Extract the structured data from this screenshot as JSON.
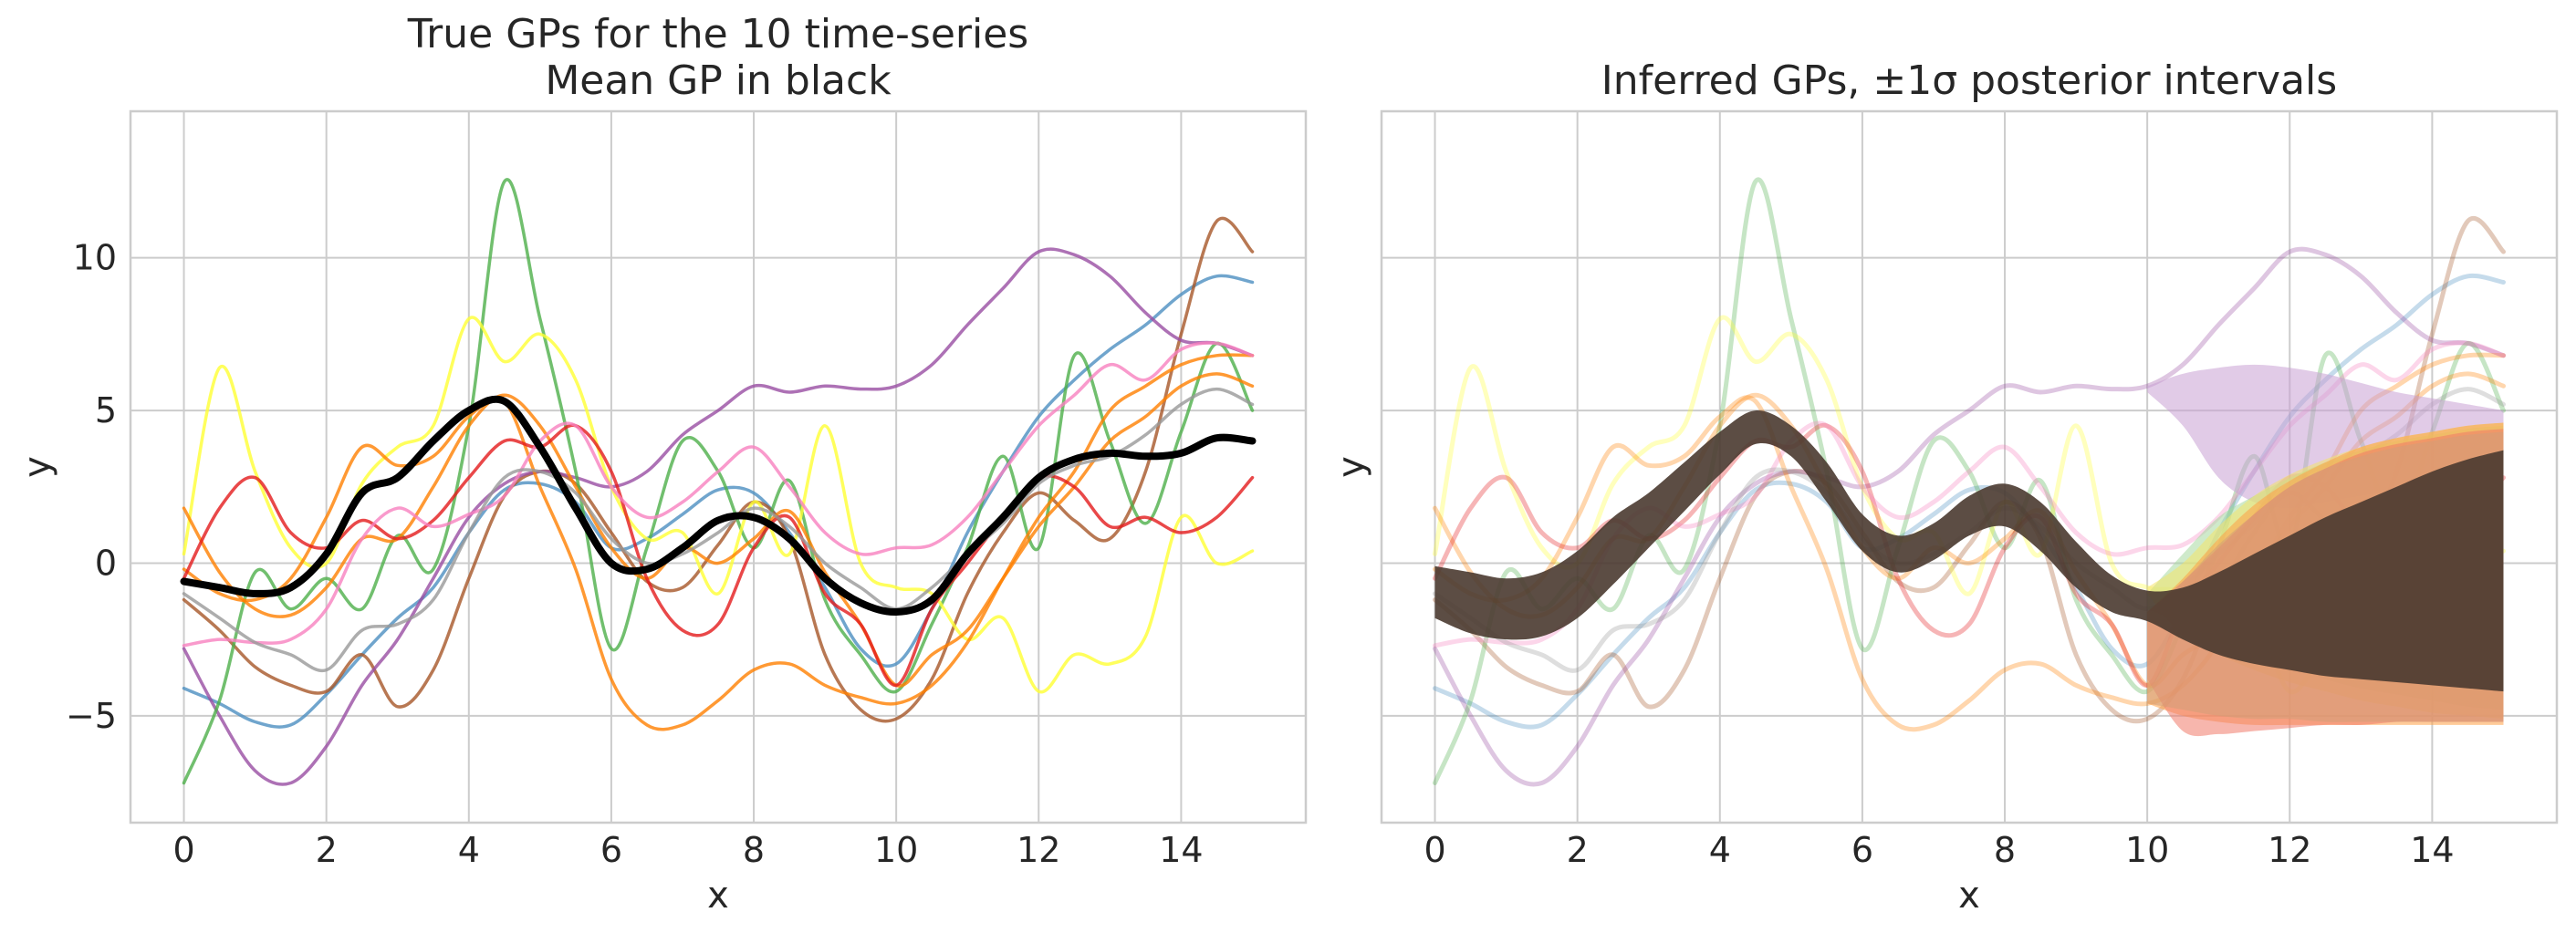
{
  "chart_data": [
    {
      "type": "line",
      "title": "True GPs for the 10 time-series",
      "subtitle": "Mean GP in black",
      "xlabel": "x",
      "ylabel": "y",
      "xlim": [
        -0.75,
        15.75
      ],
      "ylim": [
        -8.5,
        14.8
      ],
      "xticks": [
        "0",
        "2",
        "4",
        "6",
        "8",
        "10",
        "12",
        "14"
      ],
      "yticks": [
        "−5",
        "0",
        "5",
        "10"
      ],
      "grid": true,
      "x": [
        0,
        0.5,
        1,
        1.5,
        2,
        2.5,
        3,
        3.5,
        4,
        4.5,
        5,
        5.5,
        6,
        6.5,
        7,
        7.5,
        8,
        8.5,
        9,
        9.5,
        10,
        10.5,
        11,
        11.5,
        12,
        12.5,
        13,
        13.5,
        14,
        14.5,
        15
      ],
      "series": [
        {
          "name": "series-1",
          "color": "#4c8fc0",
          "values": [
            -4.1,
            -4.6,
            -5.2,
            -5.3,
            -4.3,
            -3.0,
            -1.8,
            -0.8,
            1.0,
            2.4,
            2.6,
            2.0,
            0.5,
            0.8,
            1.6,
            2.4,
            2.3,
            1.0,
            -0.8,
            -2.8,
            -3.3,
            -1.5,
            1.0,
            3.0,
            4.8,
            6.0,
            7.0,
            7.8,
            8.8,
            9.4,
            9.2
          ]
        },
        {
          "name": "series-2",
          "color": "#a65628",
          "values": [
            -1.2,
            -2.2,
            -3.4,
            -4.0,
            -4.2,
            -3.0,
            -4.7,
            -3.5,
            -0.5,
            2.2,
            3.0,
            2.6,
            1.0,
            -0.6,
            -0.8,
            0.6,
            2.0,
            0.8,
            -3.0,
            -4.8,
            -5.1,
            -3.8,
            -1.0,
            1.0,
            2.3,
            1.4,
            0.8,
            3.0,
            7.5,
            11.2,
            10.2
          ]
        },
        {
          "name": "series-3",
          "color": "#984ea3",
          "values": [
            -2.8,
            -5.0,
            -6.8,
            -7.2,
            -6.0,
            -4.0,
            -2.5,
            -0.5,
            1.5,
            2.6,
            3.0,
            2.8,
            2.5,
            3.0,
            4.2,
            5.0,
            5.8,
            5.6,
            5.8,
            5.7,
            5.8,
            6.5,
            7.8,
            9.0,
            10.2,
            10.1,
            9.4,
            8.2,
            7.3,
            7.2,
            6.8
          ]
        },
        {
          "name": "series-4",
          "color": "#4daf4a",
          "values": [
            -7.2,
            -4.5,
            -0.3,
            -1.5,
            -0.5,
            -1.5,
            0.9,
            -0.2,
            4.5,
            12.5,
            8.0,
            3.0,
            -2.8,
            0.5,
            4.0,
            3.0,
            0.5,
            2.7,
            -1.2,
            -3.0,
            -4.2,
            -2.0,
            0.5,
            3.5,
            0.5,
            6.8,
            4.0,
            1.3,
            4.3,
            7.2,
            5.0
          ]
        },
        {
          "name": "series-5",
          "color": "#ffff33",
          "values": [
            0.3,
            6.4,
            3.0,
            0.5,
            0.0,
            2.6,
            3.8,
            4.5,
            8.0,
            6.6,
            7.5,
            6.0,
            2.5,
            0.8,
            1.0,
            -1.0,
            2.0,
            0.3,
            4.5,
            0.0,
            -0.8,
            -1.0,
            -2.5,
            -1.8,
            -4.2,
            -3.0,
            -3.3,
            -2.4,
            1.5,
            0.0,
            0.4
          ]
        },
        {
          "name": "series-6",
          "color": "#ff7f00",
          "values": [
            1.8,
            -0.3,
            -1.5,
            -1.7,
            -0.8,
            0.8,
            0.8,
            2.5,
            4.5,
            5.5,
            4.5,
            2.5,
            0.5,
            -0.5,
            0.5,
            0.0,
            0.8,
            1.7,
            -0.3,
            -2.0,
            -4.0,
            -3.0,
            -2.2,
            -0.5,
            1.2,
            2.5,
            4.0,
            4.8,
            5.8,
            6.2,
            5.8
          ]
        },
        {
          "name": "series-7",
          "color": "#ff7f00",
          "values": [
            -0.2,
            -1.0,
            -1.2,
            -0.5,
            1.5,
            3.8,
            3.2,
            3.5,
            4.8,
            5.3,
            2.5,
            -0.2,
            -3.8,
            -5.3,
            -5.3,
            -4.5,
            -3.5,
            -3.3,
            -4.0,
            -4.4,
            -4.6,
            -4.0,
            -2.6,
            -0.5,
            1.5,
            3.0,
            5.0,
            5.8,
            6.5,
            6.8,
            6.8
          ]
        },
        {
          "name": "series-8",
          "color": "#e41a1c",
          "values": [
            -0.5,
            1.8,
            2.8,
            1.0,
            0.5,
            1.4,
            0.8,
            1.4,
            2.8,
            4.0,
            3.8,
            4.5,
            3.0,
            -0.5,
            -2.2,
            -2.0,
            0.5,
            1.5,
            -1.0,
            -2.0,
            -4.0,
            -1.5,
            0.0,
            1.5,
            2.8,
            2.5,
            1.2,
            1.5,
            1.0,
            1.5,
            2.8
          ]
        },
        {
          "name": "series-9",
          "color": "#f781bf",
          "values": [
            -2.7,
            -2.5,
            -2.6,
            -2.5,
            -1.5,
            0.8,
            1.8,
            1.2,
            1.6,
            2.2,
            4.0,
            4.5,
            2.5,
            1.5,
            2.0,
            3.0,
            3.8,
            2.5,
            1.0,
            0.3,
            0.5,
            0.6,
            1.5,
            3.0,
            4.5,
            5.5,
            6.5,
            6.0,
            7.0,
            7.2,
            6.8
          ]
        },
        {
          "name": "series-10",
          "color": "#999999",
          "values": [
            -1.0,
            -1.8,
            -2.6,
            -3.0,
            -3.5,
            -2.2,
            -2.0,
            -1.2,
            1.0,
            2.8,
            3.0,
            2.3,
            0.8,
            0.0,
            0.3,
            1.0,
            1.8,
            1.2,
            0.0,
            -0.8,
            -1.5,
            -0.8,
            0.3,
            1.3,
            2.6,
            3.2,
            3.5,
            4.2,
            5.2,
            5.7,
            5.2
          ]
        },
        {
          "name": "Mean GP",
          "color": "#000000",
          "values": [
            -0.6,
            -0.8,
            -1.0,
            -0.8,
            0.3,
            2.3,
            2.8,
            4.0,
            5.0,
            5.3,
            3.8,
            1.8,
            0.0,
            -0.2,
            0.5,
            1.4,
            1.5,
            0.8,
            -0.5,
            -1.3,
            -1.6,
            -1.2,
            0.3,
            1.5,
            2.8,
            3.4,
            3.6,
            3.5,
            3.6,
            4.1,
            4.0
          ]
        }
      ]
    },
    {
      "type": "area",
      "title": "Inferred GPs, ±1σ posterior intervals",
      "xlabel": "x",
      "ylabel": "y",
      "xlim": [
        -0.75,
        15.75
      ],
      "ylim": [
        -8.5,
        14.8
      ],
      "xticks": [
        "0",
        "2",
        "4",
        "6",
        "8",
        "10",
        "12",
        "14"
      ],
      "grid": true,
      "x": [
        10,
        10.5,
        11,
        11.5,
        12,
        12.5,
        13,
        13.5,
        14,
        14.5,
        15
      ],
      "bands": [
        {
          "name": "purple-band",
          "color": "#c9a0d3",
          "lower": [
            5.6,
            4.5,
            2.8,
            2.0,
            1.8,
            2.0,
            2.2,
            2.4,
            2.6,
            2.8,
            2.9
          ],
          "upper": [
            5.8,
            6.2,
            6.4,
            6.5,
            6.4,
            6.2,
            5.9,
            5.6,
            5.4,
            5.2,
            5.0
          ]
        },
        {
          "name": "green-band",
          "color": "#a8d8a0",
          "lower": [
            -1.5,
            -2.0,
            -2.6,
            -3.0,
            -3.4,
            -3.8,
            -4.1,
            -4.3,
            -4.5,
            -4.7,
            -4.8
          ],
          "upper": [
            -1.0,
            0.3,
            1.5,
            2.2,
            2.8,
            3.3,
            3.7,
            4.0,
            4.2,
            4.4,
            4.5
          ]
        },
        {
          "name": "yellow-band",
          "color": "#f4e36a",
          "lower": [
            -1.0,
            -2.4,
            -3.0,
            -3.5,
            -3.9,
            -4.2,
            -4.5,
            -4.7,
            -4.9,
            -5.0,
            -5.1
          ],
          "upper": [
            -0.8,
            0.0,
            1.2,
            2.2,
            2.9,
            3.4,
            3.8,
            4.1,
            4.3,
            4.5,
            4.6
          ]
        },
        {
          "name": "orange-band",
          "color": "#ffa046",
          "lower": [
            -4.6,
            -5.0,
            -5.2,
            -5.3,
            -5.3,
            -5.3,
            -5.3,
            -5.3,
            -5.3,
            -5.3,
            -5.3
          ],
          "upper": [
            -1.6,
            -0.5,
            0.8,
            1.9,
            2.7,
            3.3,
            3.8,
            4.1,
            4.3,
            4.5,
            4.6
          ]
        },
        {
          "name": "red-band",
          "color": "#f07a6a",
          "lower": [
            -3.8,
            -5.5,
            -5.6,
            -5.5,
            -5.4,
            -5.3,
            -5.3,
            -5.2,
            -5.2,
            -5.2,
            -5.2
          ],
          "upper": [
            -1.6,
            -0.6,
            0.5,
            1.6,
            2.5,
            3.1,
            3.6,
            3.9,
            4.1,
            4.3,
            4.4
          ]
        },
        {
          "name": "brown-band",
          "color": "#d29e78",
          "lower": [
            -4.6,
            -4.8,
            -5.0,
            -5.1,
            -5.1,
            -5.2,
            -5.2,
            -5.2,
            -5.2,
            -5.2,
            -5.2
          ],
          "upper": [
            -1.6,
            -0.6,
            0.6,
            1.6,
            2.5,
            3.1,
            3.5,
            3.8,
            4.0,
            4.2,
            4.3
          ]
        },
        {
          "name": "mean-band",
          "color": "#4a3a30",
          "x": [
            0,
            0.5,
            1,
            1.5,
            2,
            2.5,
            3,
            3.5,
            4,
            4.5,
            5,
            5.5,
            6,
            6.5,
            7,
            7.5,
            8,
            8.5,
            9,
            9.5,
            10,
            10.5,
            11,
            11.5,
            12,
            12.5,
            13,
            13.5,
            14,
            14.5,
            15
          ],
          "lower": [
            -1.8,
            -2.3,
            -2.5,
            -2.4,
            -1.8,
            -0.7,
            0.5,
            1.7,
            2.9,
            3.9,
            3.5,
            2.0,
            0.4,
            -0.3,
            0.1,
            0.9,
            1.2,
            0.4,
            -0.8,
            -1.6,
            -1.9,
            -2.5,
            -3.0,
            -3.3,
            -3.5,
            -3.7,
            -3.8,
            -3.9,
            -4.0,
            -4.1,
            -4.2
          ],
          "upper": [
            -0.1,
            -0.3,
            -0.5,
            -0.3,
            0.4,
            1.5,
            2.3,
            3.3,
            4.3,
            5.0,
            4.5,
            3.3,
            1.6,
            0.9,
            1.3,
            2.2,
            2.6,
            2.0,
            0.7,
            -0.4,
            -0.9,
            -0.8,
            -0.3,
            0.3,
            0.9,
            1.5,
            2.0,
            2.5,
            3.0,
            3.4,
            3.7
          ]
        }
      ]
    }
  ]
}
